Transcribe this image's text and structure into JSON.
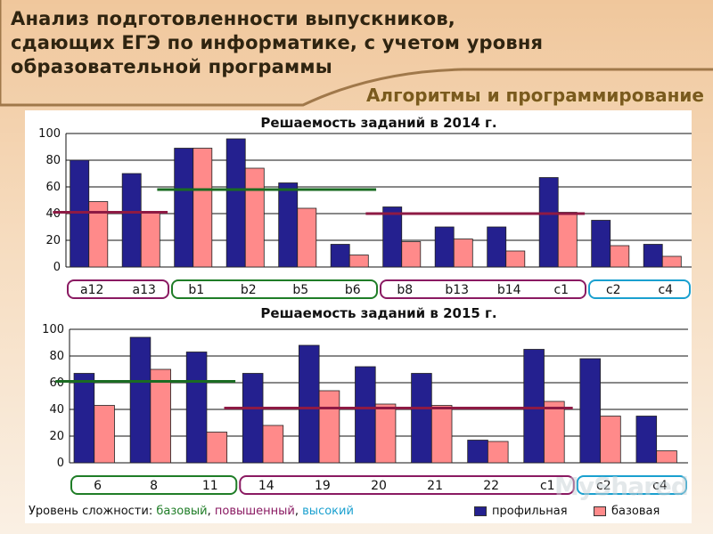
{
  "header": {
    "title_line1": "Анализ подготовленности выпускников,",
    "title_line2": "сдающих ЕГЭ по информатике, с учетом уровня",
    "title_line3": "образовательной программы",
    "subtitle": "Алгоритмы и программирование"
  },
  "legend": {
    "prefix": "Уровень сложности:",
    "base": "базовый",
    "sep1": ",",
    "mid": "повышенный",
    "sep2": ",",
    "high": "высокий",
    "series_profile": "профильная",
    "series_basic": "базовая"
  },
  "colors": {
    "profile": "#24208f",
    "basic": "#ff8a8a",
    "level_base": "#1f7d27",
    "level_mid": "#8a1a62",
    "level_high": "#1aa0cf"
  },
  "watermark": "MyShared",
  "chart_data": [
    {
      "type": "bar",
      "title": "Решаемость заданий в 2014 г.",
      "ylim": [
        0,
        100
      ],
      "yticks": [
        0,
        20,
        40,
        60,
        80,
        100
      ],
      "categories": [
        "а12",
        "а13",
        "b1",
        "b2",
        "b5",
        "b6",
        "b8",
        "b13",
        "b14",
        "c1",
        "c2",
        "c4"
      ],
      "series": [
        {
          "name": "профильная",
          "values": [
            80,
            70,
            89,
            96,
            63,
            17,
            45,
            30,
            30,
            67,
            35,
            17
          ]
        },
        {
          "name": "базовая",
          "values": [
            49,
            41,
            89,
            74,
            44,
            9,
            19,
            21,
            12,
            41,
            16,
            8
          ]
        }
      ],
      "level_groups": [
        {
          "level": "повышенный",
          "from": 0,
          "to": 1,
          "avg": 41
        },
        {
          "level": "базовый",
          "from": 2,
          "to": 5,
          "avg": 58
        },
        {
          "level": "повышенный",
          "from": 6,
          "to": 9,
          "avg": 40
        },
        {
          "level": "высокий",
          "from": 10,
          "to": 11
        }
      ]
    },
    {
      "type": "bar",
      "title": "Решаемость заданий в 2015 г.",
      "ylim": [
        0,
        100
      ],
      "yticks": [
        0,
        20,
        40,
        60,
        80,
        100
      ],
      "categories": [
        "6",
        "8",
        "11",
        "14",
        "19",
        "20",
        "21",
        "22",
        "c1",
        "c2",
        "c4"
      ],
      "series": [
        {
          "name": "профильная",
          "values": [
            67,
            94,
            83,
            67,
            88,
            72,
            67,
            17,
            85,
            78,
            35
          ]
        },
        {
          "name": "базовая",
          "values": [
            43,
            70,
            23,
            28,
            54,
            44,
            43,
            16,
            46,
            35,
            9
          ]
        }
      ],
      "level_groups": [
        {
          "level": "базовый",
          "from": 0,
          "to": 2,
          "avg": 61
        },
        {
          "level": "повышенный",
          "from": 3,
          "to": 8,
          "avg": 41
        },
        {
          "level": "высокий",
          "from": 9,
          "to": 10
        }
      ]
    }
  ]
}
